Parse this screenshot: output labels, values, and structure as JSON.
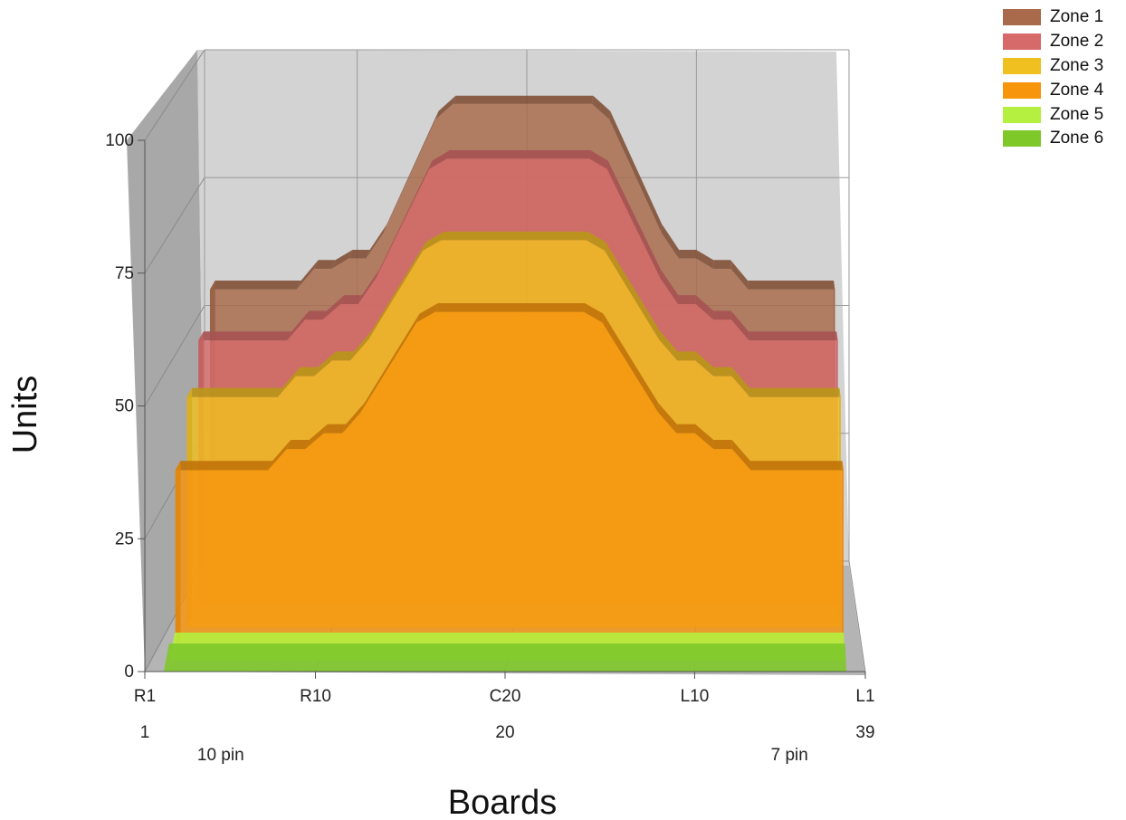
{
  "chart_data": {
    "type": "area",
    "style": "3d-ribbon",
    "xlabel": "Boards",
    "ylabel": "Units",
    "ylim": [
      0,
      100
    ],
    "yticks": [
      0,
      25,
      50,
      75,
      100
    ],
    "x_range": [
      1,
      39
    ],
    "xtick_labels": [
      {
        "x": 1,
        "label": "R1"
      },
      {
        "x": 10,
        "label": "R10"
      },
      {
        "x": 20,
        "label": "C20"
      },
      {
        "x": 30,
        "label": "L10"
      },
      {
        "x": 39,
        "label": "L1"
      }
    ],
    "xnumber_labels": [
      {
        "x": 1,
        "label": "1"
      },
      {
        "x": 20,
        "label": "20"
      },
      {
        "x": 39,
        "label": "39"
      }
    ],
    "annotations": [
      {
        "x": 5,
        "text": "10 pin"
      },
      {
        "x": 35,
        "text": "7 pin"
      }
    ],
    "grid": true,
    "legend_position": "top-right",
    "series": [
      {
        "name": "Zone 1",
        "color": "#a86a4a",
        "depth": 4,
        "values": [
          {
            "x": 2,
            "y": 57
          },
          {
            "x": 7,
            "y": 57
          },
          {
            "x": 8,
            "y": 61
          },
          {
            "x": 9,
            "y": 61
          },
          {
            "x": 10,
            "y": 63
          },
          {
            "x": 11,
            "y": 63
          },
          {
            "x": 12,
            "y": 68
          },
          {
            "x": 15,
            "y": 90
          },
          {
            "x": 16,
            "y": 93
          },
          {
            "x": 24,
            "y": 93
          },
          {
            "x": 25,
            "y": 90
          },
          {
            "x": 28,
            "y": 68
          },
          {
            "x": 29,
            "y": 63
          },
          {
            "x": 30,
            "y": 63
          },
          {
            "x": 31,
            "y": 61
          },
          {
            "x": 32,
            "y": 61
          },
          {
            "x": 33,
            "y": 57
          },
          {
            "x": 38,
            "y": 57
          }
        ]
      },
      {
        "name": "Zone 2",
        "color": "#d66a6a",
        "depth": 3,
        "values": [
          {
            "x": 2,
            "y": 51
          },
          {
            "x": 7,
            "y": 51
          },
          {
            "x": 8,
            "y": 55
          },
          {
            "x": 9,
            "y": 55
          },
          {
            "x": 10,
            "y": 58
          },
          {
            "x": 11,
            "y": 58
          },
          {
            "x": 12,
            "y": 63
          },
          {
            "x": 15,
            "y": 84
          },
          {
            "x": 16,
            "y": 86
          },
          {
            "x": 24,
            "y": 86
          },
          {
            "x": 25,
            "y": 84
          },
          {
            "x": 28,
            "y": 63
          },
          {
            "x": 29,
            "y": 58
          },
          {
            "x": 30,
            "y": 58
          },
          {
            "x": 31,
            "y": 55
          },
          {
            "x": 32,
            "y": 55
          },
          {
            "x": 33,
            "y": 51
          },
          {
            "x": 38,
            "y": 51
          }
        ]
      },
      {
        "name": "Zone 3",
        "color": "#f0c020",
        "depth": 2,
        "values": [
          {
            "x": 2,
            "y": 44
          },
          {
            "x": 7,
            "y": 44
          },
          {
            "x": 8,
            "y": 48
          },
          {
            "x": 9,
            "y": 48
          },
          {
            "x": 10,
            "y": 51
          },
          {
            "x": 11,
            "y": 51
          },
          {
            "x": 12,
            "y": 55
          },
          {
            "x": 15,
            "y": 72
          },
          {
            "x": 16,
            "y": 74
          },
          {
            "x": 24,
            "y": 74
          },
          {
            "x": 25,
            "y": 72
          },
          {
            "x": 28,
            "y": 55
          },
          {
            "x": 29,
            "y": 51
          },
          {
            "x": 30,
            "y": 51
          },
          {
            "x": 31,
            "y": 48
          },
          {
            "x": 32,
            "y": 48
          },
          {
            "x": 33,
            "y": 44
          },
          {
            "x": 38,
            "y": 44
          }
        ]
      },
      {
        "name": "Zone 4",
        "color": "#f7950d",
        "depth": 1,
        "values": [
          {
            "x": 2,
            "y": 34
          },
          {
            "x": 7,
            "y": 34
          },
          {
            "x": 8,
            "y": 38
          },
          {
            "x": 9,
            "y": 38
          },
          {
            "x": 10,
            "y": 41
          },
          {
            "x": 11,
            "y": 41
          },
          {
            "x": 12,
            "y": 45
          },
          {
            "x": 15,
            "y": 62
          },
          {
            "x": 16,
            "y": 64
          },
          {
            "x": 24,
            "y": 64
          },
          {
            "x": 25,
            "y": 62
          },
          {
            "x": 28,
            "y": 45
          },
          {
            "x": 29,
            "y": 41
          },
          {
            "x": 30,
            "y": 41
          },
          {
            "x": 31,
            "y": 38
          },
          {
            "x": 32,
            "y": 38
          },
          {
            "x": 33,
            "y": 34
          },
          {
            "x": 38,
            "y": 34
          }
        ]
      },
      {
        "name": "Zone 5",
        "color": "#b5f040",
        "depth": 0.5,
        "values": [
          {
            "x": 2,
            "y": 1
          },
          {
            "x": 38,
            "y": 1
          }
        ]
      },
      {
        "name": "Zone 6",
        "color": "#7ec82a",
        "depth": 0,
        "values": [
          {
            "x": 2,
            "y": 1
          },
          {
            "x": 38,
            "y": 1
          }
        ]
      }
    ]
  }
}
